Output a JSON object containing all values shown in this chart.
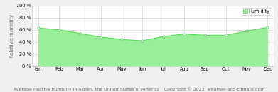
{
  "months": [
    "Jan",
    "Feb",
    "Mar",
    "Apr",
    "May",
    "Jun",
    "Jul",
    "Aug",
    "Sep",
    "Oct",
    "Nov",
    "Dec"
  ],
  "humidity": [
    63,
    60,
    54,
    48,
    44,
    42,
    49,
    53,
    51,
    51,
    58,
    64
  ],
  "line_color": "#55dd55",
  "fill_color": "#99ee99",
  "marker_color": "#ffffff",
  "marker_edge_color": "#77cc77",
  "bg_color": "#f0f0f0",
  "plot_bg_color": "#ffffff",
  "grid_color": "#cccccc",
  "ylabel": "Relative humidity",
  "ylim": [
    0,
    100
  ],
  "yticks": [
    0,
    20,
    40,
    60,
    80,
    100
  ],
  "title": "Average relative humidity in Aspen, the United States of America",
  "copyright": "   Copyright © 2023  weather-and-climate.com",
  "legend_label": "Humidity",
  "tick_fontsize": 4.8,
  "ylabel_fontsize": 5.0,
  "caption_fontsize": 4.5
}
